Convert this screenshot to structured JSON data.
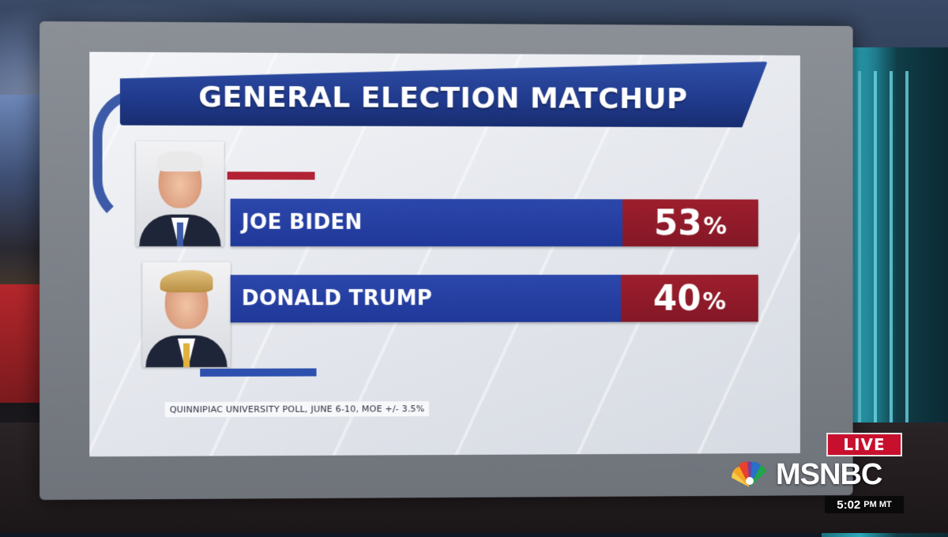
{
  "screen": {
    "title": "GENERAL ELECTION MATCHUP",
    "source": "QUINNIPIAC UNIVERSITY POLL, JUNE 6-10, MOE +/- 3.5%"
  },
  "chart_data": {
    "type": "bar",
    "title": "GENERAL ELECTION MATCHUP",
    "categories": [
      "JOE BIDEN",
      "DONALD TRUMP"
    ],
    "values": [
      53,
      40
    ],
    "value_labels": [
      "53",
      "40"
    ],
    "unit": "%",
    "annotations": [
      "QUINNIPIAC UNIVERSITY POLL, JUNE 6-10, MOE +/- 3.5%"
    ],
    "colors": {
      "name_bar": "#2440a0",
      "value_box": "#941b2b"
    }
  },
  "broadcast": {
    "live": "LIVE",
    "network": "MSNBC",
    "time": "5:02",
    "ampm_tz": "PM MT"
  },
  "icons": {
    "network_logo": "peacock-logo",
    "candidate_1_photo": "joe-biden-photo",
    "candidate_2_photo": "donald-trump-photo"
  },
  "colors": {
    "live_red": "#c8102e",
    "ribbon_blue": "#203a8c"
  }
}
